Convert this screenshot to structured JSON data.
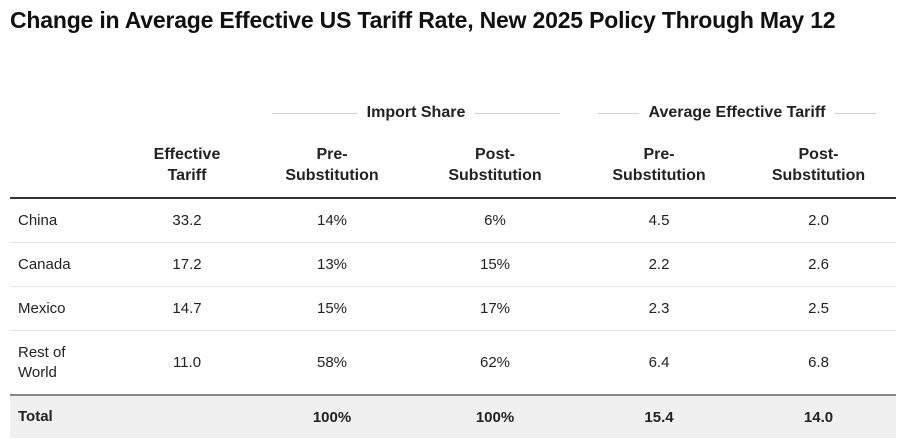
{
  "chart_data": {
    "type": "table",
    "title": "Change in Average Effective US Tariff Rate, New 2025 Policy Through May 12",
    "column_groups": [
      "Import Share",
      "Average Effective Tariff"
    ],
    "columns": [
      "",
      "Effective Tariff",
      "Pre-Substitution",
      "Post-Substitution",
      "Pre-Substitution",
      "Post-Substitution"
    ],
    "rows": [
      {
        "label": "China",
        "values": [
          "33.2",
          "14%",
          "6%",
          "4.5",
          "2.0"
        ]
      },
      {
        "label": "Canada",
        "values": [
          "17.2",
          "13%",
          "15%",
          "2.2",
          "2.6"
        ]
      },
      {
        "label": "Mexico",
        "values": [
          "14.7",
          "15%",
          "17%",
          "2.3",
          "2.5"
        ]
      },
      {
        "label": "Rest of World",
        "values": [
          "11.0",
          "58%",
          "62%",
          "6.4",
          "6.8"
        ]
      }
    ],
    "total": {
      "label": "Total",
      "values": [
        "",
        "100%",
        "100%",
        "15.4",
        "14.0"
      ]
    }
  }
}
